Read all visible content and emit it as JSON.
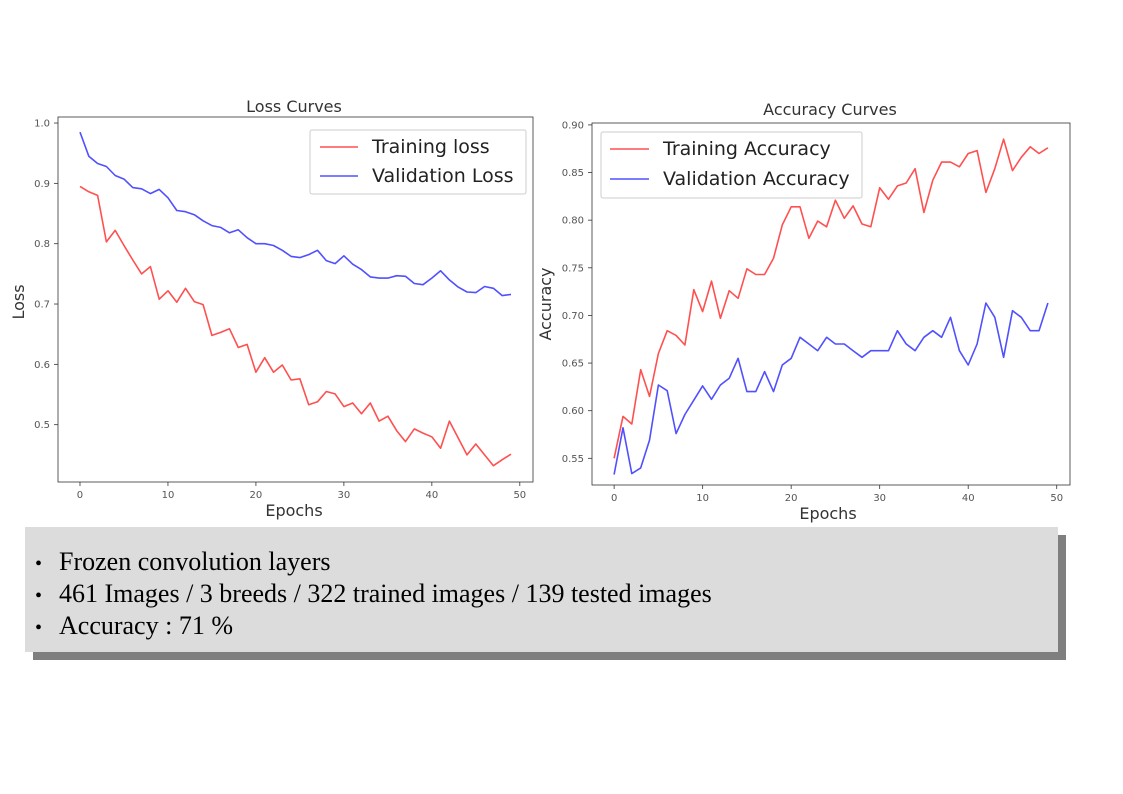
{
  "chart_data": [
    {
      "type": "line",
      "title": "Loss Curves",
      "xlabel": "Epochs",
      "ylabel": "Loss",
      "xlim": [
        -2.5,
        51.5
      ],
      "ylim": [
        0.405,
        1.01
      ],
      "xticks": [
        0,
        10,
        20,
        30,
        40,
        50
      ],
      "yticks": [
        0.5,
        0.6,
        0.7,
        0.8,
        0.9,
        1.0
      ],
      "xtick_labels": [
        "0",
        "10",
        "20",
        "30",
        "40",
        "50"
      ],
      "ytick_labels": [
        "0.5",
        "0.6",
        "0.7",
        "0.8",
        "0.9",
        "1.0"
      ],
      "grid": false,
      "legend_position": "top-right",
      "x": [
        0,
        1,
        2,
        3,
        4,
        5,
        6,
        7,
        8,
        9,
        10,
        11,
        12,
        13,
        14,
        15,
        16,
        17,
        18,
        19,
        20,
        21,
        22,
        23,
        24,
        25,
        26,
        27,
        28,
        29,
        30,
        31,
        32,
        33,
        34,
        35,
        36,
        37,
        38,
        39,
        40,
        41,
        42,
        43,
        44,
        45,
        46,
        47,
        48,
        49
      ],
      "series": [
        {
          "name": "Training loss",
          "color": "#ff5050",
          "values": [
            0.895,
            0.886,
            0.88,
            0.803,
            0.822,
            0.797,
            0.773,
            0.75,
            0.762,
            0.708,
            0.722,
            0.703,
            0.726,
            0.704,
            0.699,
            0.648,
            0.653,
            0.659,
            0.628,
            0.633,
            0.587,
            0.611,
            0.587,
            0.599,
            0.574,
            0.576,
            0.533,
            0.538,
            0.555,
            0.551,
            0.53,
            0.536,
            0.518,
            0.536,
            0.506,
            0.514,
            0.49,
            0.472,
            0.493,
            0.486,
            0.48,
            0.461,
            0.506,
            0.478,
            0.45,
            0.468,
            0.45,
            0.432,
            0.442,
            0.451
          ]
        },
        {
          "name": "Validation Loss",
          "color": "#5050ff",
          "values": [
            0.985,
            0.945,
            0.933,
            0.928,
            0.913,
            0.907,
            0.893,
            0.891,
            0.883,
            0.89,
            0.876,
            0.855,
            0.853,
            0.848,
            0.838,
            0.83,
            0.827,
            0.818,
            0.823,
            0.81,
            0.8,
            0.8,
            0.797,
            0.789,
            0.779,
            0.777,
            0.782,
            0.789,
            0.772,
            0.767,
            0.78,
            0.766,
            0.757,
            0.745,
            0.743,
            0.743,
            0.747,
            0.746,
            0.734,
            0.732,
            0.743,
            0.755,
            0.74,
            0.728,
            0.72,
            0.719,
            0.729,
            0.726,
            0.714,
            0.716
          ]
        }
      ]
    },
    {
      "type": "line",
      "title": "Accuracy Curves",
      "xlabel": "Epochs",
      "ylabel": "Accuracy",
      "xlim": [
        -2.5,
        51.5
      ],
      "ylim": [
        0.522,
        0.902
      ],
      "xticks": [
        0,
        10,
        20,
        30,
        40,
        50
      ],
      "yticks": [
        0.55,
        0.6,
        0.65,
        0.7,
        0.75,
        0.8,
        0.85,
        0.9
      ],
      "xtick_labels": [
        "0",
        "10",
        "20",
        "30",
        "40",
        "50"
      ],
      "ytick_labels": [
        "0.55",
        "0.60",
        "0.65",
        "0.70",
        "0.75",
        "0.80",
        "0.85",
        "0.90"
      ],
      "grid": false,
      "legend_position": "top-left",
      "x": [
        0,
        1,
        2,
        3,
        4,
        5,
        6,
        7,
        8,
        9,
        10,
        11,
        12,
        13,
        14,
        15,
        16,
        17,
        18,
        19,
        20,
        21,
        22,
        23,
        24,
        25,
        26,
        27,
        28,
        29,
        30,
        31,
        32,
        33,
        34,
        35,
        36,
        37,
        38,
        39,
        40,
        41,
        42,
        43,
        44,
        45,
        46,
        47,
        48,
        49
      ],
      "series": [
        {
          "name": "Training Accuracy",
          "color": "#ff5050",
          "values": [
            0.55,
            0.594,
            0.586,
            0.643,
            0.615,
            0.66,
            0.684,
            0.679,
            0.669,
            0.727,
            0.704,
            0.736,
            0.697,
            0.726,
            0.718,
            0.749,
            0.743,
            0.743,
            0.76,
            0.795,
            0.814,
            0.814,
            0.781,
            0.799,
            0.793,
            0.821,
            0.802,
            0.815,
            0.796,
            0.793,
            0.834,
            0.822,
            0.836,
            0.839,
            0.854,
            0.808,
            0.842,
            0.861,
            0.861,
            0.856,
            0.87,
            0.873,
            0.829,
            0.854,
            0.885,
            0.852,
            0.866,
            0.877,
            0.87,
            0.876
          ]
        },
        {
          "name": "Validation Accuracy",
          "color": "#5050ff",
          "values": [
            0.533,
            0.582,
            0.534,
            0.54,
            0.569,
            0.627,
            0.621,
            0.576,
            0.596,
            0.611,
            0.626,
            0.612,
            0.627,
            0.634,
            0.655,
            0.62,
            0.62,
            0.641,
            0.62,
            0.648,
            0.655,
            0.677,
            0.67,
            0.663,
            0.677,
            0.67,
            0.67,
            0.663,
            0.656,
            0.663,
            0.663,
            0.663,
            0.684,
            0.67,
            0.663,
            0.677,
            0.684,
            0.677,
            0.698,
            0.663,
            0.648,
            0.67,
            0.713,
            0.698,
            0.656,
            0.705,
            0.698,
            0.684,
            0.684,
            0.713
          ]
        }
      ]
    }
  ],
  "info_box": {
    "bullet_glyph": "•",
    "items": [
      "Frozen convolution layers",
      "461 Images / 3 breeds / 322 trained images / 139 tested images",
      "Accuracy : 71 %"
    ]
  }
}
